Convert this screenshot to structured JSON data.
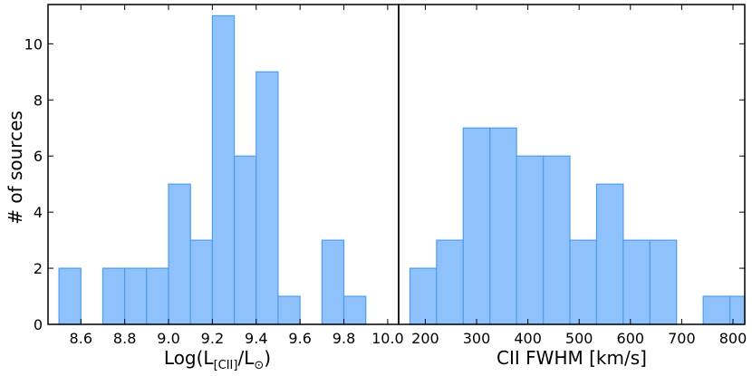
{
  "chart_data": [
    {
      "type": "bar",
      "subtype": "histogram",
      "xlabel": "Log(L[CII]/L⊙)",
      "xlabel_parts": {
        "main": "Log(L",
        "sub1": "[CII]",
        "mid": "/L",
        "sub2": "⊙",
        "end": ")"
      },
      "ylabel": "# of sources",
      "xlim": [
        8.45,
        10.05
      ],
      "ylim": [
        0,
        11.4
      ],
      "xticks": [
        8.6,
        8.8,
        9.0,
        9.2,
        9.4,
        9.6,
        9.8,
        10.0
      ],
      "xtick_labels": [
        "8.6",
        "8.8",
        "9.0",
        "9.2",
        "9.4",
        "9.6",
        "9.8",
        "10.0"
      ],
      "yticks": [
        0,
        2,
        4,
        6,
        8,
        10
      ],
      "ytick_labels": [
        "0",
        "2",
        "4",
        "6",
        "8",
        "10"
      ],
      "bins": [
        [
          8.5,
          8.6,
          2
        ],
        [
          8.7,
          8.8,
          2
        ],
        [
          8.8,
          8.9,
          2
        ],
        [
          8.9,
          9.0,
          2
        ],
        [
          9.0,
          9.1,
          5
        ],
        [
          9.1,
          9.2,
          3
        ],
        [
          9.2,
          9.3,
          11
        ],
        [
          9.3,
          9.4,
          6
        ],
        [
          9.4,
          9.5,
          9
        ],
        [
          9.5,
          9.6,
          1
        ],
        [
          9.7,
          9.8,
          3
        ],
        [
          9.8,
          9.9,
          1
        ]
      ]
    },
    {
      "type": "bar",
      "subtype": "histogram",
      "xlabel": "CII FWHM [km/s]",
      "ylabel": "",
      "xlim": [
        148,
        823
      ],
      "ylim": [
        0,
        11.4
      ],
      "xticks": [
        200,
        300,
        400,
        500,
        600,
        700,
        800
      ],
      "xtick_labels": [
        "200",
        "300",
        "400",
        "500",
        "600",
        "700",
        "800"
      ],
      "bins": [
        [
          170,
          222,
          2
        ],
        [
          222,
          274,
          3
        ],
        [
          274,
          326,
          7
        ],
        [
          326,
          378,
          7
        ],
        [
          378,
          430,
          6
        ],
        [
          430,
          482,
          6
        ],
        [
          482,
          534,
          3
        ],
        [
          534,
          586,
          5
        ],
        [
          586,
          638,
          3
        ],
        [
          638,
          690,
          3
        ],
        [
          742,
          794,
          1
        ],
        [
          794,
          846,
          1
        ]
      ]
    }
  ],
  "colors": {
    "bar_fill": "#8fc2fd",
    "bar_stroke": "#4f9de8",
    "axis": "#000000"
  }
}
